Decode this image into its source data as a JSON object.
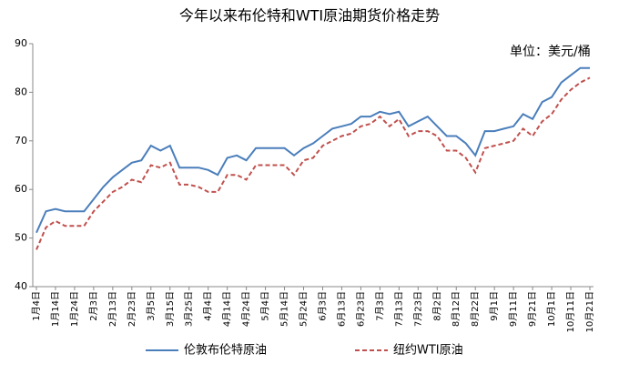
{
  "chart_data": {
    "type": "line",
    "title": "今年以来布伦特和WTI原油期货价格走势",
    "annotation": "单位：美元/桶",
    "categories": [
      "1月4日",
      null,
      "1月14日",
      null,
      "1月24日",
      null,
      "2月3日",
      null,
      "2月13日",
      null,
      "2月23日",
      null,
      "3月5日",
      null,
      "3月15日",
      null,
      "3月25日",
      null,
      "4月4日",
      null,
      "4月14日",
      null,
      "4月24日",
      null,
      "5月4日",
      null,
      "5月14日",
      null,
      "5月24日",
      null,
      "6月3日",
      null,
      "6月13日",
      null,
      "6月23日",
      null,
      "7月3日",
      null,
      "7月13日",
      null,
      "7月23日",
      null,
      "8月2日",
      null,
      "8月12日",
      null,
      "8月22日",
      null,
      "9月1日",
      null,
      "9月11日",
      null,
      "9月21日",
      null,
      "10月1日",
      null,
      "10月11日",
      null,
      "10月21日"
    ],
    "series": [
      {
        "name": "伦敦布伦特原油",
        "color": "#4a7ebb",
        "dash": false,
        "values": [
          51.1,
          55.5,
          56,
          55.5,
          55.5,
          55.5,
          58,
          60.5,
          62.5,
          64,
          65.5,
          66,
          69,
          68,
          69,
          64.5,
          64.5,
          64.5,
          64,
          63,
          66.5,
          67,
          66,
          68.5,
          68.5,
          68.5,
          68.5,
          67,
          68.5,
          69.5,
          71,
          72.5,
          73,
          73.5,
          75,
          75,
          76,
          75.5,
          76,
          73,
          74,
          75,
          73,
          71,
          71,
          69.5,
          67,
          72,
          72,
          72.5,
          73,
          75.5,
          74.5,
          78,
          79,
          82,
          83.5,
          85,
          85
        ]
      },
      {
        "name": "纽约WTI原油",
        "color": "#c0504d",
        "dash": true,
        "values": [
          47.6,
          52.2,
          53.5,
          52.5,
          52.5,
          52.5,
          55.5,
          57.5,
          59.5,
          60.5,
          62,
          61.5,
          65,
          64.5,
          65.5,
          61,
          61,
          60.5,
          59.5,
          59.5,
          63,
          63,
          62,
          65,
          65,
          65,
          65,
          63,
          66,
          66.5,
          69,
          70,
          71,
          71.5,
          73,
          73.5,
          75,
          73,
          74.5,
          71,
          72,
          72,
          71,
          68,
          68,
          66.5,
          63.5,
          68.5,
          69,
          69.5,
          70,
          72.5,
          71,
          74,
          75.5,
          78.5,
          80.5,
          82,
          83
        ]
      }
    ],
    "ylim": [
      40,
      90
    ],
    "yticks": [
      40,
      50,
      60,
      70,
      80,
      90
    ],
    "grid": false,
    "legend": "bottom"
  }
}
